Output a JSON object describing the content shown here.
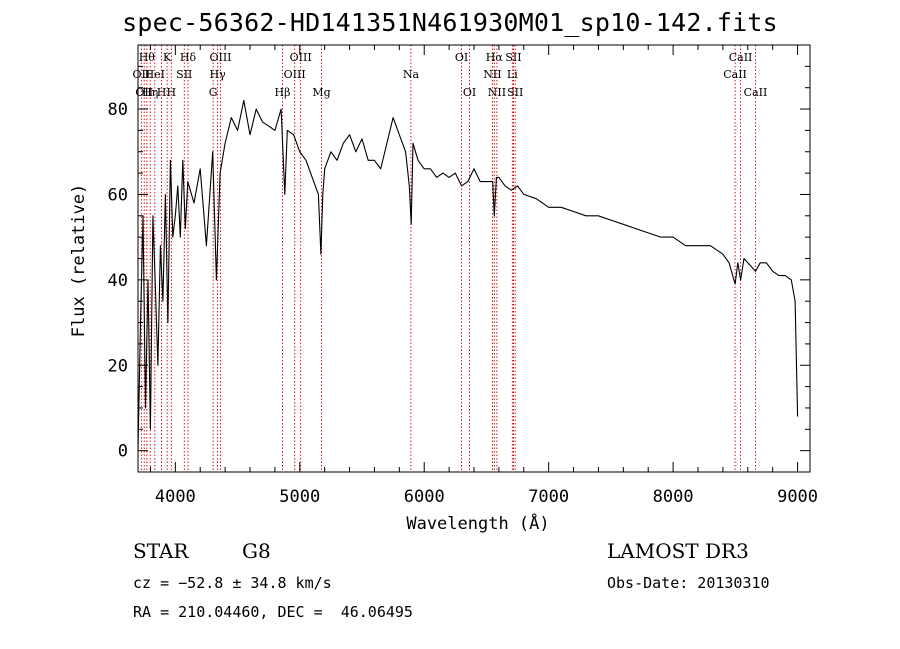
{
  "page": {
    "title": "spec-56362-HD141351N461930M01_sp10-142.fits",
    "object_class": "STAR",
    "subclass": "G8",
    "survey": "LAMOST DR3",
    "redshift_text": "cz = −52.8 ± 34.8 km/s",
    "obs_date_text": "Obs-Date: 20130310",
    "coords_text": "RA = 210.04460, DEC =  46.06495"
  },
  "colors": {
    "spectrum": "#000000",
    "line_marker": "#cc0000",
    "axis": "#000000"
  },
  "chart_data": {
    "type": "line",
    "title": "spec-56362-HD141351N461930M01_sp10-142.fits",
    "xlabel": "Wavelength (Å)",
    "ylabel": "Flux (relative)",
    "xlim": [
      3700,
      9100
    ],
    "ylim": [
      -5,
      95
    ],
    "xticks": [
      4000,
      5000,
      6000,
      7000,
      8000,
      9000
    ],
    "yticks": [
      0,
      20,
      40,
      60,
      80
    ],
    "grid": false,
    "series": [
      {
        "name": "spectrum",
        "x": [
          3700,
          3720,
          3740,
          3760,
          3780,
          3800,
          3820,
          3840,
          3860,
          3880,
          3900,
          3920,
          3940,
          3960,
          3980,
          4000,
          4020,
          4040,
          4060,
          4080,
          4100,
          4150,
          4200,
          4250,
          4300,
          4330,
          4360,
          4400,
          4450,
          4500,
          4550,
          4600,
          4650,
          4700,
          4750,
          4800,
          4850,
          4880,
          4900,
          4950,
          5000,
          5050,
          5100,
          5150,
          5170,
          5185,
          5200,
          5250,
          5300,
          5350,
          5400,
          5450,
          5500,
          5550,
          5600,
          5650,
          5700,
          5750,
          5800,
          5850,
          5880,
          5895,
          5910,
          5950,
          6000,
          6050,
          6100,
          6150,
          6200,
          6250,
          6300,
          6350,
          6400,
          6450,
          6500,
          6550,
          6563,
          6580,
          6600,
          6650,
          6700,
          6750,
          6800,
          6900,
          7000,
          7100,
          7200,
          7300,
          7400,
          7500,
          7600,
          7700,
          7800,
          7900,
          8000,
          8100,
          8200,
          8300,
          8400,
          8450,
          8498,
          8520,
          8542,
          8570,
          8600,
          8662,
          8700,
          8750,
          8800,
          8850,
          8900,
          8950,
          8980,
          9000
        ],
        "values": [
          0,
          30,
          55,
          10,
          40,
          5,
          55,
          38,
          20,
          48,
          35,
          60,
          30,
          68,
          50,
          55,
          62,
          50,
          68,
          52,
          63,
          58,
          66,
          48,
          70,
          40,
          65,
          72,
          78,
          75,
          82,
          74,
          80,
          77,
          76,
          75,
          80,
          60,
          75,
          74,
          70,
          68,
          64,
          60,
          46,
          60,
          66,
          70,
          68,
          72,
          74,
          70,
          73,
          68,
          68,
          66,
          72,
          78,
          74,
          70,
          62,
          53,
          72,
          68,
          66,
          66,
          64,
          65,
          64,
          65,
          62,
          63,
          66,
          63,
          63,
          63,
          55,
          64,
          64,
          62,
          61,
          62,
          60,
          59,
          57,
          57,
          56,
          55,
          55,
          54,
          53,
          52,
          51,
          50,
          50,
          48,
          48,
          48,
          46,
          44,
          39,
          44,
          40,
          45,
          44,
          42,
          44,
          44,
          42,
          41,
          41,
          40,
          35,
          8
        ]
      }
    ],
    "spectral_lines": [
      {
        "x": 3727,
        "label": "OII",
        "row": 2
      },
      {
        "x": 3750,
        "label": "OII",
        "row": 3
      },
      {
        "x": 3771,
        "label": "Hθ",
        "row": 1
      },
      {
        "x": 3798,
        "label": "Hη",
        "row": 3
      },
      {
        "x": 3835,
        "label": "HeI",
        "row": 2
      },
      {
        "x": 3889,
        "label": "H",
        "row": 3
      },
      {
        "x": 3934,
        "label": "K",
        "row": 1
      },
      {
        "x": 3968,
        "label": "H",
        "row": 3
      },
      {
        "x": 4072,
        "label": "SII",
        "row": 2
      },
      {
        "x": 4102,
        "label": "Hδ",
        "row": 1
      },
      {
        "x": 4304,
        "label": "G",
        "row": 3
      },
      {
        "x": 4340,
        "label": "Hγ",
        "row": 2
      },
      {
        "x": 4363,
        "label": "OIII",
        "row": 1
      },
      {
        "x": 4861,
        "label": "Hβ",
        "row": 3
      },
      {
        "x": 4959,
        "label": "OIII",
        "row": 2
      },
      {
        "x": 5007,
        "label": "OIII",
        "row": 1
      },
      {
        "x": 5175,
        "label": "Mg",
        "row": 3
      },
      {
        "x": 5893,
        "label": "Na",
        "row": 2
      },
      {
        "x": 6300,
        "label": "OI",
        "row": 1
      },
      {
        "x": 6364,
        "label": "OI",
        "row": 3
      },
      {
        "x": 6548,
        "label": "NII",
        "row": 2
      },
      {
        "x": 6563,
        "label": "Hα",
        "row": 1
      },
      {
        "x": 6584,
        "label": "NII",
        "row": 3
      },
      {
        "x": 6708,
        "label": "Li",
        "row": 2
      },
      {
        "x": 6717,
        "label": "SII",
        "row": 1
      },
      {
        "x": 6731,
        "label": "SII",
        "row": 3
      },
      {
        "x": 8498,
        "label": "CaII",
        "row": 2
      },
      {
        "x": 8542,
        "label": "CaII",
        "row": 1
      },
      {
        "x": 8662,
        "label": "CaII",
        "row": 3
      }
    ]
  }
}
